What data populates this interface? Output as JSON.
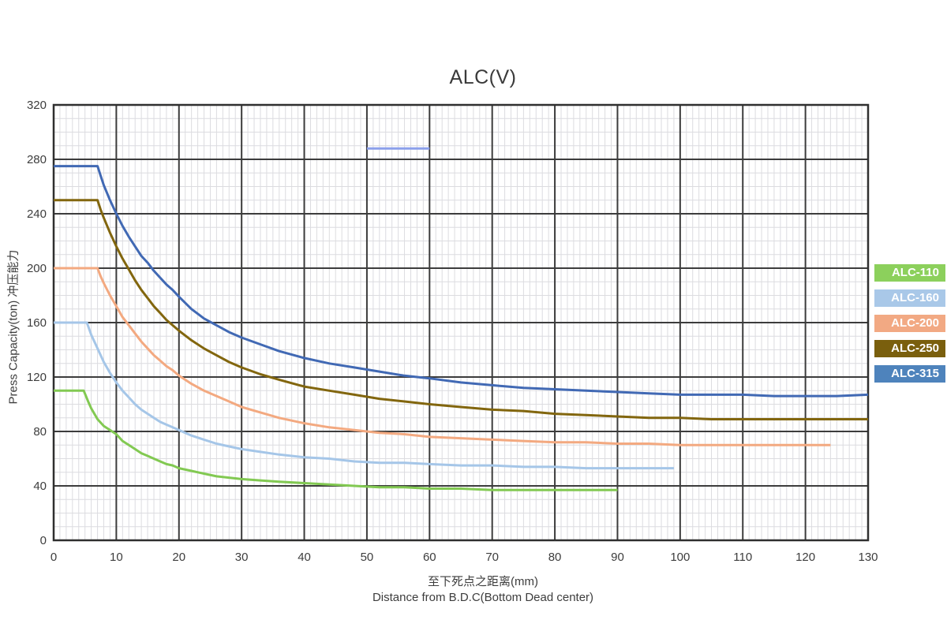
{
  "chart_data": {
    "type": "line",
    "title": "ALC(V)",
    "ylabel": "Press Capacity(ton)  冲压能力",
    "xlabel_zh": "至下死点之距离(mm)",
    "xlabel_en": "Distance from B.D.C(Bottom Dead center)",
    "xlim": [
      0,
      130
    ],
    "ylim": [
      0,
      320
    ],
    "x_ticks": [
      0,
      10,
      20,
      30,
      40,
      50,
      60,
      70,
      80,
      90,
      100,
      110,
      120,
      130
    ],
    "y_ticks": [
      0,
      40,
      80,
      120,
      160,
      200,
      240,
      280,
      320
    ],
    "x_minor_step": 1,
    "y_minor_step": 10,
    "grid": {
      "minor_color": "#dcdce0",
      "major_color": "#3c3c3c",
      "border_color": "#2f2f2f",
      "background": "#ffffff"
    },
    "legend_position": "right-outside",
    "series": [
      {
        "name": "ALC-110",
        "color": "#82C952",
        "legend_color": "#8CD05C",
        "points": [
          [
            0,
            110
          ],
          [
            4.8,
            110
          ],
          [
            5.5,
            102
          ],
          [
            6,
            97
          ],
          [
            7,
            89
          ],
          [
            8,
            84
          ],
          [
            9,
            81
          ],
          [
            10,
            78
          ],
          [
            11,
            73
          ],
          [
            12,
            70
          ],
          [
            13,
            67
          ],
          [
            14,
            64
          ],
          [
            15,
            62
          ],
          [
            16,
            60
          ],
          [
            17,
            58
          ],
          [
            18,
            56
          ],
          [
            19,
            55
          ],
          [
            20,
            53
          ],
          [
            22,
            51
          ],
          [
            24,
            49
          ],
          [
            26,
            47
          ],
          [
            28,
            46
          ],
          [
            30,
            45
          ],
          [
            33,
            44
          ],
          [
            36,
            43
          ],
          [
            40,
            42
          ],
          [
            44,
            41
          ],
          [
            48,
            40
          ],
          [
            52,
            39
          ],
          [
            56,
            39
          ],
          [
            60,
            38
          ],
          [
            65,
            38
          ],
          [
            70,
            37
          ],
          [
            75,
            37
          ],
          [
            80,
            37
          ],
          [
            85,
            37
          ],
          [
            90,
            37
          ]
        ]
      },
      {
        "name": "ALC-160",
        "color": "#A5C6E8",
        "legend_color": "#A9C8E8",
        "points": [
          [
            0,
            160
          ],
          [
            5.3,
            160
          ],
          [
            6,
            151
          ],
          [
            7,
            141
          ],
          [
            8,
            131
          ],
          [
            9,
            123
          ],
          [
            10,
            116
          ],
          [
            11,
            110
          ],
          [
            12,
            105
          ],
          [
            13,
            100
          ],
          [
            14,
            96
          ],
          [
            15,
            93
          ],
          [
            16,
            90
          ],
          [
            17,
            87
          ],
          [
            18,
            85
          ],
          [
            19,
            83
          ],
          [
            20,
            81
          ],
          [
            22,
            77
          ],
          [
            24,
            74
          ],
          [
            26,
            71
          ],
          [
            28,
            69
          ],
          [
            30,
            67
          ],
          [
            33,
            65
          ],
          [
            36,
            63
          ],
          [
            40,
            61
          ],
          [
            44,
            60
          ],
          [
            48,
            58
          ],
          [
            52,
            57
          ],
          [
            56,
            57
          ],
          [
            60,
            56
          ],
          [
            65,
            55
          ],
          [
            70,
            55
          ],
          [
            75,
            54
          ],
          [
            80,
            54
          ],
          [
            85,
            53
          ],
          [
            90,
            53
          ],
          [
            95,
            53
          ],
          [
            99,
            53
          ]
        ]
      },
      {
        "name": "ALC-200",
        "color": "#F3A980",
        "legend_color": "#F2A983",
        "points": [
          [
            0,
            200
          ],
          [
            7,
            200
          ],
          [
            7.5,
            194
          ],
          [
            8,
            189
          ],
          [
            9,
            180
          ],
          [
            10,
            172
          ],
          [
            11,
            164
          ],
          [
            12,
            158
          ],
          [
            13,
            152
          ],
          [
            14,
            146
          ],
          [
            15,
            141
          ],
          [
            16,
            136
          ],
          [
            17,
            132
          ],
          [
            18,
            128
          ],
          [
            19,
            125
          ],
          [
            20,
            121
          ],
          [
            22,
            115
          ],
          [
            24,
            110
          ],
          [
            26,
            106
          ],
          [
            28,
            102
          ],
          [
            30,
            98
          ],
          [
            33,
            94
          ],
          [
            36,
            90
          ],
          [
            40,
            86
          ],
          [
            44,
            83
          ],
          [
            48,
            81
          ],
          [
            52,
            79
          ],
          [
            56,
            78
          ],
          [
            60,
            76
          ],
          [
            65,
            75
          ],
          [
            70,
            74
          ],
          [
            75,
            73
          ],
          [
            80,
            72
          ],
          [
            85,
            72
          ],
          [
            90,
            71
          ],
          [
            95,
            71
          ],
          [
            100,
            70
          ],
          [
            105,
            70
          ],
          [
            110,
            70
          ],
          [
            115,
            70
          ],
          [
            120,
            70
          ],
          [
            124,
            70
          ]
        ]
      },
      {
        "name": "ALC-250",
        "color": "#82660E",
        "legend_color": "#7A5F0D",
        "points": [
          [
            0,
            250
          ],
          [
            7,
            250
          ],
          [
            7.5,
            243
          ],
          [
            8,
            237
          ],
          [
            9,
            226
          ],
          [
            10,
            216
          ],
          [
            11,
            207
          ],
          [
            12,
            199
          ],
          [
            13,
            191
          ],
          [
            14,
            184
          ],
          [
            15,
            178
          ],
          [
            16,
            172
          ],
          [
            17,
            167
          ],
          [
            18,
            162
          ],
          [
            19,
            158
          ],
          [
            20,
            154
          ],
          [
            22,
            147
          ],
          [
            24,
            141
          ],
          [
            26,
            136
          ],
          [
            28,
            131
          ],
          [
            30,
            127
          ],
          [
            33,
            122
          ],
          [
            36,
            118
          ],
          [
            40,
            113
          ],
          [
            44,
            110
          ],
          [
            48,
            107
          ],
          [
            52,
            104
          ],
          [
            56,
            102
          ],
          [
            60,
            100
          ],
          [
            65,
            98
          ],
          [
            70,
            96
          ],
          [
            75,
            95
          ],
          [
            80,
            93
          ],
          [
            85,
            92
          ],
          [
            90,
            91
          ],
          [
            95,
            90
          ],
          [
            100,
            90
          ],
          [
            105,
            89
          ],
          [
            110,
            89
          ],
          [
            115,
            89
          ],
          [
            120,
            89
          ],
          [
            125,
            89
          ],
          [
            130,
            89
          ]
        ]
      },
      {
        "name": "ALC-315",
        "color": "#4169B4",
        "legend_color": "#4E83BC",
        "points": [
          [
            0,
            275
          ],
          [
            7,
            275
          ],
          [
            7.5,
            268
          ],
          [
            8,
            261
          ],
          [
            9,
            250
          ],
          [
            10,
            240
          ],
          [
            11,
            231
          ],
          [
            12,
            223
          ],
          [
            13,
            216
          ],
          [
            14,
            209
          ],
          [
            15,
            204
          ],
          [
            16,
            198
          ],
          [
            17,
            193
          ],
          [
            18,
            188
          ],
          [
            19,
            184
          ],
          [
            20,
            179
          ],
          [
            22,
            170
          ],
          [
            24,
            163
          ],
          [
            26,
            158
          ],
          [
            28,
            153
          ],
          [
            30,
            149
          ],
          [
            33,
            144
          ],
          [
            36,
            139
          ],
          [
            40,
            134
          ],
          [
            44,
            130
          ],
          [
            48,
            127
          ],
          [
            52,
            124
          ],
          [
            56,
            121
          ],
          [
            60,
            119
          ],
          [
            65,
            116
          ],
          [
            70,
            114
          ],
          [
            75,
            112
          ],
          [
            80,
            111
          ],
          [
            85,
            110
          ],
          [
            90,
            109
          ],
          [
            95,
            108
          ],
          [
            100,
            107
          ],
          [
            105,
            107
          ],
          [
            110,
            107
          ],
          [
            115,
            106
          ],
          [
            120,
            106
          ],
          [
            125,
            106
          ],
          [
            130,
            107
          ]
        ]
      }
    ],
    "stray_segment": {
      "color": "#8CA0EB",
      "points": [
        [
          50,
          288
        ],
        [
          60,
          288
        ]
      ]
    }
  }
}
